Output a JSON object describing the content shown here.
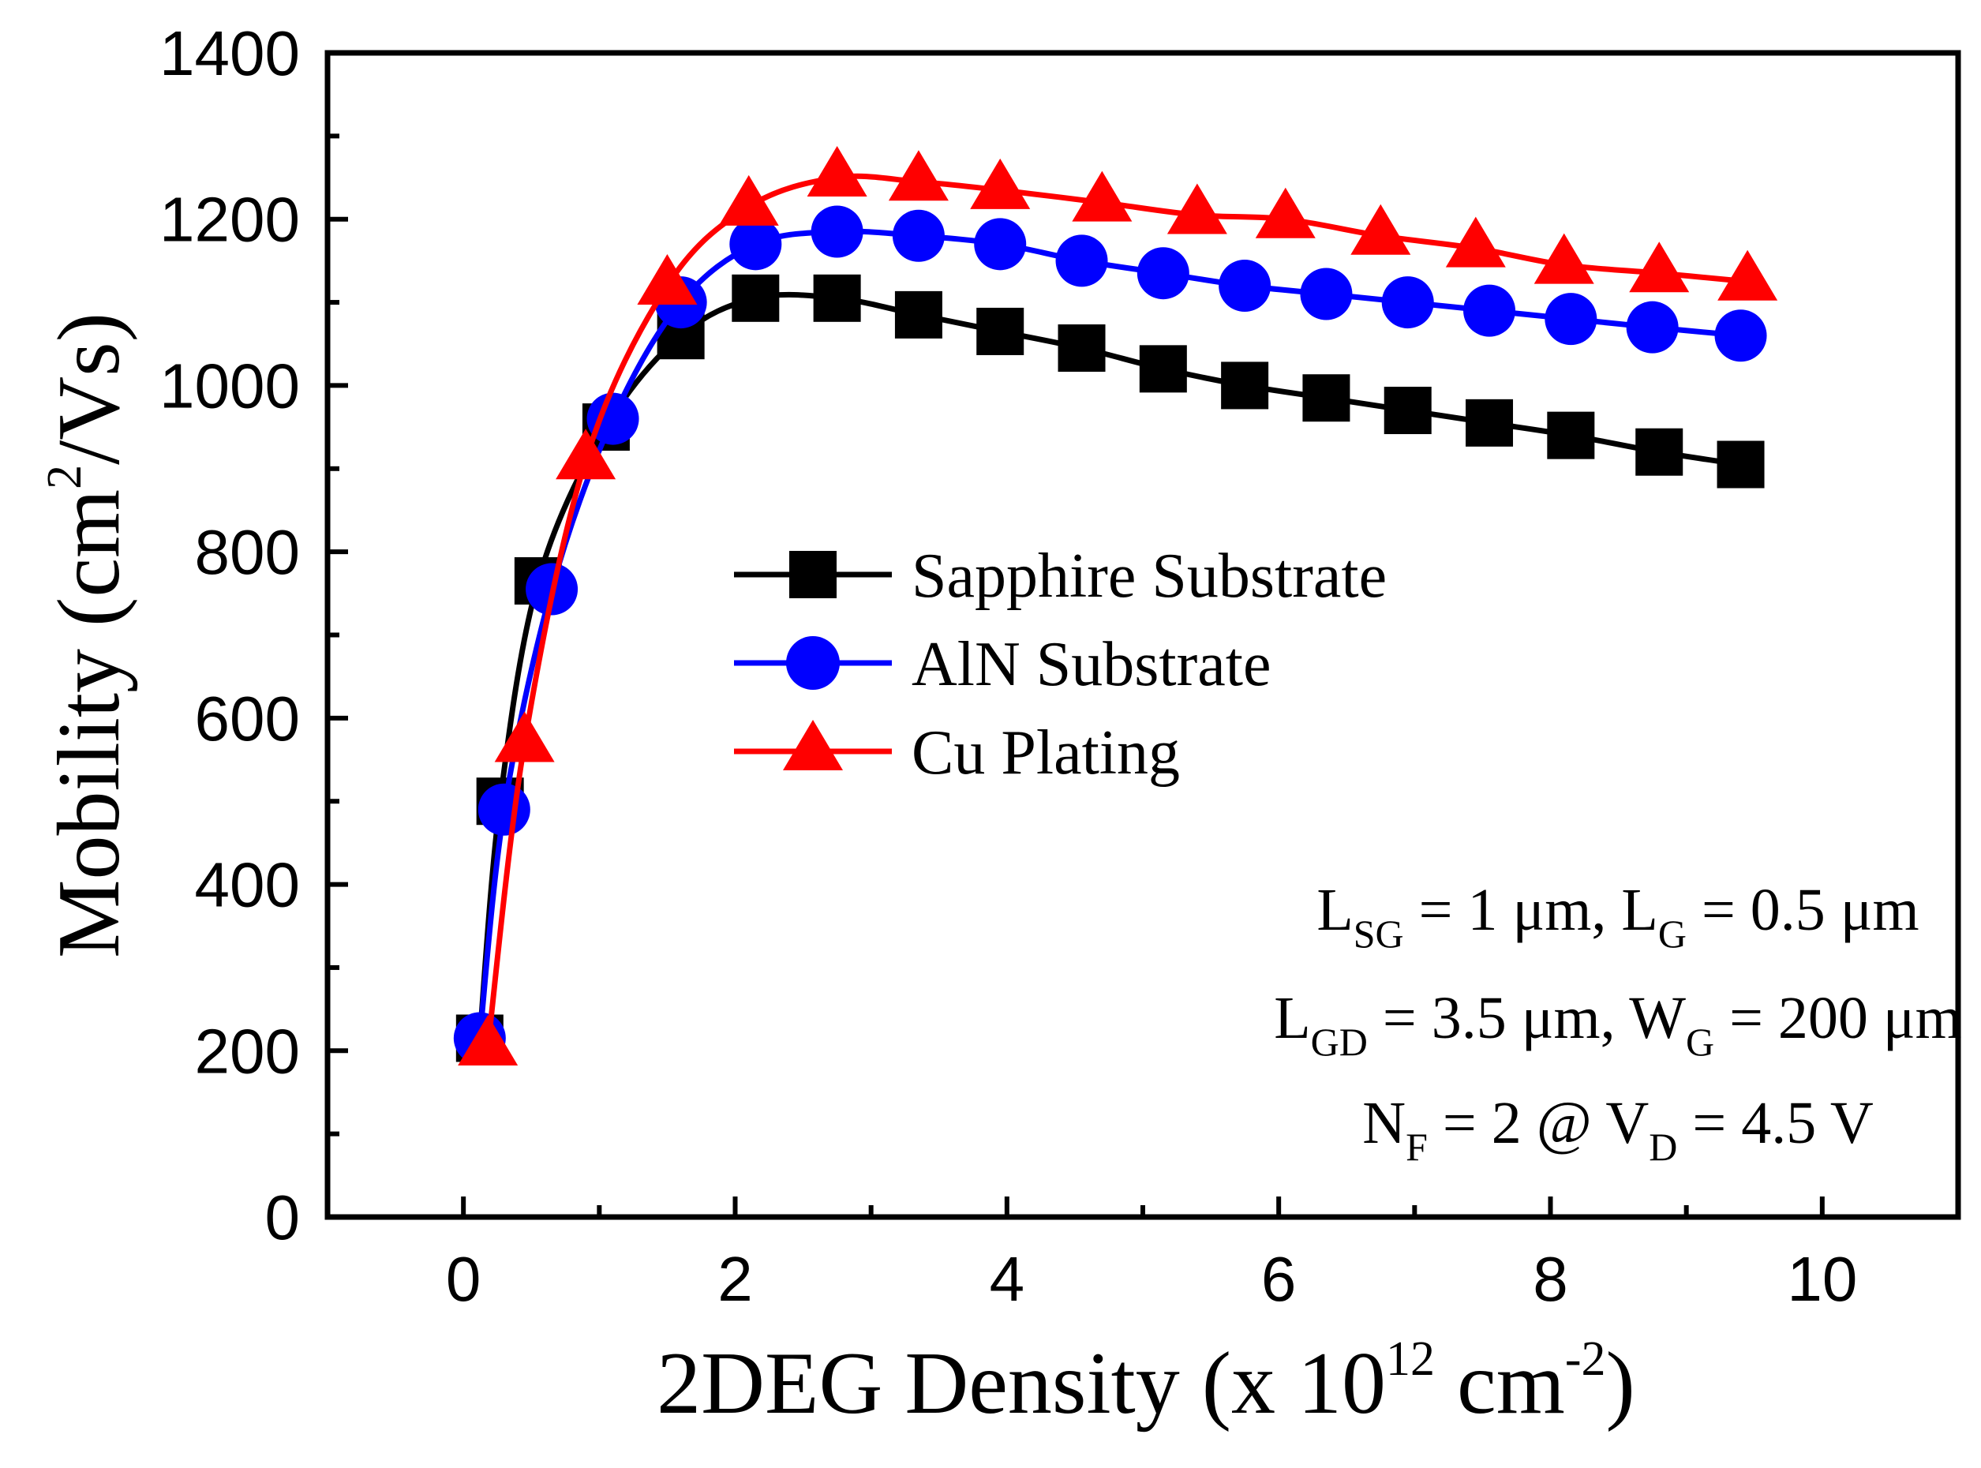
{
  "chart_data": {
    "type": "line",
    "title": "",
    "xlabel_main": "2DEG Density (x 10",
    "xlabel_exp1": "12",
    "xlabel_mid": " cm",
    "xlabel_exp2": "-2",
    "xlabel_end": ")",
    "ylabel_main": "Mobility (cm",
    "ylabel_exp": "2",
    "ylabel_end": "/Vs)",
    "xlim": [
      -1,
      11
    ],
    "ylim": [
      0,
      1400
    ],
    "xticks": [
      "0",
      "2",
      "4",
      "6",
      "8",
      "10"
    ],
    "yticks": [
      "0",
      "200",
      "400",
      "600",
      "800",
      "1000",
      "1200",
      "1400"
    ],
    "legend_position": "center",
    "series": [
      {
        "name": "Sapphire Substrate",
        "color": "#000000",
        "marker": "square",
        "x": [
          0.12,
          0.27,
          0.55,
          1.05,
          1.6,
          2.15,
          2.75,
          3.35,
          3.95,
          4.55,
          5.15,
          5.75,
          6.35,
          6.95,
          7.55,
          8.15,
          8.8,
          9.4
        ],
        "y": [
          215,
          500,
          765,
          950,
          1060,
          1105,
          1105,
          1085,
          1065,
          1045,
          1020,
          1000,
          985,
          970,
          955,
          940,
          920,
          905
        ]
      },
      {
        "name": "AlN Substrate",
        "color": "#0000ff",
        "marker": "circle",
        "x": [
          0.12,
          0.3,
          0.65,
          1.1,
          1.6,
          2.15,
          2.75,
          3.35,
          3.95,
          4.55,
          5.15,
          5.75,
          6.35,
          6.95,
          7.55,
          8.15,
          8.75,
          9.4
        ],
        "y": [
          215,
          490,
          755,
          960,
          1100,
          1170,
          1185,
          1180,
          1170,
          1150,
          1135,
          1120,
          1110,
          1100,
          1090,
          1080,
          1070,
          1060
        ]
      },
      {
        "name": "Cu Plating",
        "color": "#ff0000",
        "marker": "triangle",
        "x": [
          0.18,
          0.45,
          0.9,
          1.5,
          2.1,
          2.75,
          3.35,
          3.95,
          4.7,
          5.4,
          6.05,
          6.75,
          7.45,
          8.1,
          8.8,
          9.45
        ],
        "y": [
          205,
          570,
          910,
          1120,
          1215,
          1250,
          1245,
          1235,
          1220,
          1205,
          1200,
          1180,
          1165,
          1145,
          1135,
          1125
        ]
      }
    ],
    "annotations": {
      "line1": {
        "a": "L",
        "a_sub": "SG",
        "b": " = 1 μm, L",
        "b_sub": "G",
        "c": " = 0.5 μm"
      },
      "line2": {
        "a": "L",
        "a_sub": "GD",
        "b": " = 3.5 μm, W",
        "b_sub": "G",
        "c": " = 200 μm"
      },
      "line3": {
        "a": "N",
        "a_sub": "F",
        "b": " = 2 @ V",
        "b_sub": "D",
        "c": " = 4.5 V"
      }
    }
  }
}
